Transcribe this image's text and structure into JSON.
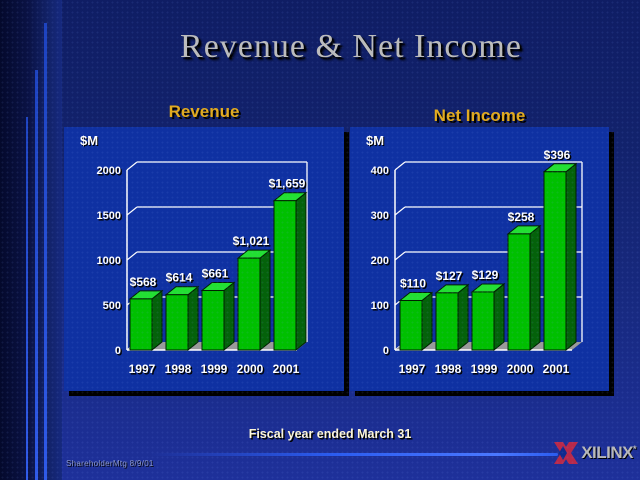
{
  "slide": {
    "title": "Revenue & Net Income",
    "footnote": "Fiscal year ended March 31",
    "credit": "ShareholderMtg  8/9/01",
    "logo_text": "XILINX",
    "logo_mark": "*"
  },
  "colors": {
    "slide_bg_top": "#0f1d64",
    "slide_bg_bottom": "#1e309a",
    "panel_bg": "#0f31a2",
    "header_gold": "#e3ab1d",
    "footnote_pale_yellow": "#fdf7d9",
    "bar_front": "#00c000",
    "bar_top": "#22e032",
    "bar_side": "#04620a",
    "bar_outline": "#002200",
    "floor_gray": "#9a9a9a",
    "axis_white": "#ffffff",
    "logo_crimson": "#b8294a",
    "accent_blue": "#2b5cf0"
  },
  "chart_data": [
    {
      "type": "bar",
      "title": "Revenue",
      "unit_label": "$M",
      "categories": [
        "1997",
        "1998",
        "1999",
        "2000",
        "2001"
      ],
      "values": [
        568,
        614,
        661,
        1021,
        1659
      ],
      "data_labels": [
        "$568",
        "$614",
        "$661",
        "$1,021",
        "$1,659"
      ],
      "yticks": [
        "0",
        "500",
        "1000",
        "1500",
        "2000"
      ],
      "ylim": [
        0,
        2000
      ],
      "ytick_step": 500,
      "grid": true,
      "style": "3d-column"
    },
    {
      "type": "bar",
      "title": "Net Income",
      "unit_label": "$M",
      "categories": [
        "1997",
        "1998",
        "1999",
        "2000",
        "2001"
      ],
      "values": [
        110,
        127,
        129,
        258,
        396
      ],
      "data_labels": [
        "$110",
        "$127",
        "$129",
        "$258",
        "$396"
      ],
      "yticks": [
        "0",
        "100",
        "200",
        "300",
        "400"
      ],
      "ylim": [
        0,
        400
      ],
      "ytick_step": 100,
      "grid": true,
      "style": "3d-column"
    }
  ]
}
